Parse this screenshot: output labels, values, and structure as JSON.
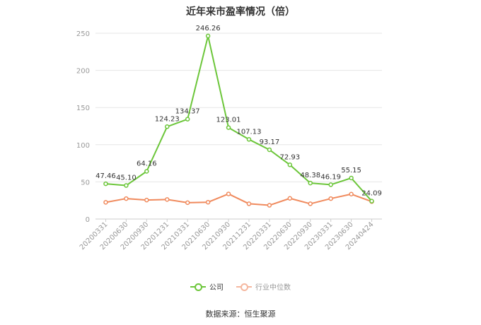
{
  "title": "近年来市盈率情况（倍）",
  "source": "数据来源：恒生聚源",
  "colors": {
    "company": "#6cc63a",
    "industry": "#f08a5d",
    "axis": "#999999",
    "grid": "#e6e6e6"
  },
  "legend": [
    {
      "name": "公司",
      "color": "#6cc63a",
      "active": true
    },
    {
      "name": "行业中位数",
      "color": "#f5b79f",
      "active": false
    }
  ],
  "chart_data": {
    "type": "line",
    "title": "近年来市盈率情况（倍）",
    "categories": [
      "20200331",
      "20200630",
      "20200930",
      "20201231",
      "20210331",
      "20210630",
      "20210930",
      "20211231",
      "20220331",
      "20220630",
      "20220930",
      "20230331",
      "20230630",
      "20240424"
    ],
    "ylim": [
      0,
      250
    ],
    "yticks": [
      0,
      50,
      100,
      150,
      200,
      250
    ],
    "grid": true,
    "legend_position": "bottom",
    "series": [
      {
        "name": "公司",
        "color": "#6cc63a",
        "labels": true,
        "values": [
          47.46,
          45.1,
          64.16,
          124.23,
          134.37,
          246.26,
          123.01,
          107.13,
          93.17,
          72.93,
          48.38,
          46.19,
          55.15,
          24.09
        ]
      },
      {
        "name": "行业中位数",
        "color": "#f08a5d",
        "labels": false,
        "values": [
          22.5,
          27.5,
          25.5,
          26.3,
          22.0,
          22.6,
          33.8,
          20.5,
          18.5,
          27.8,
          20.5,
          27.5,
          33.5,
          23.5
        ]
      }
    ]
  }
}
